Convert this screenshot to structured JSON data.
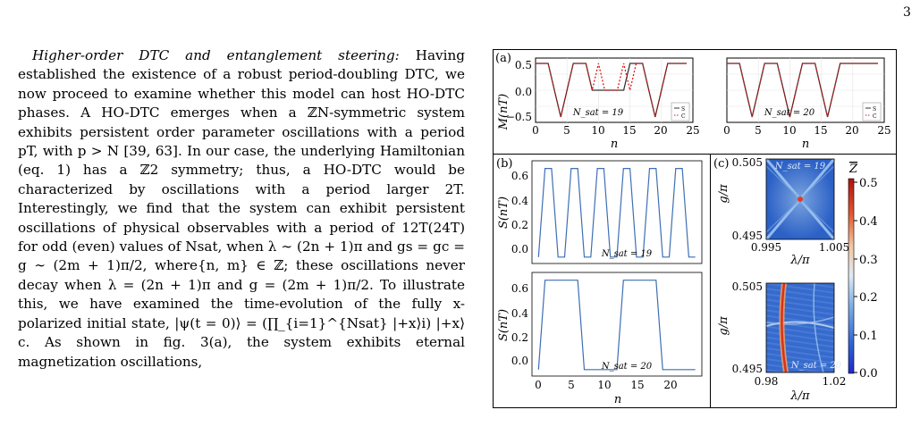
{
  "page_number": "3",
  "text": {
    "heading": "Higher-order DTC and entanglement steering:",
    "body": "Having established the existence of a robust period-doubling DTC, we now proceed to examine whether this model can host HO-DTC phases. A HO-DTC emerges when a ℤN-symmetric system exhibits persistent order parameter oscillations with a period pT, with p > N [39, 63]. In our case, the underlying Hamiltonian (eq. 1) has a ℤ2 symmetry; thus, a HO-DTC would be characterized by oscillations with a period larger 2T. Interestingly, we find that the system can exhibit persistent oscillations of physical observables with a period of 12T(24T) for odd (even) values of Nsat, when λ ∼ (2n + 1)π and gs = gc = g ∼ (2m + 1)π/2, where{n, m} ∈ ℤ; these oscillations never decay when λ = (2n + 1)π and g = (2m + 1)π/2. To illustrate this, we have examined the time-evolution of the fully x-polarized initial state, |ψ(t = 0)⟩ = (∏_{i=1}^{Nsat} |+x⟩i) |+x⟩c. As shown in fig. 3(a), the system exhibits eternal magnetization oscillations,"
  },
  "figure": {
    "panel_a": {
      "label": "(a)",
      "ylabel": "M(nT)",
      "xlabel": "n",
      "yticks": [
        "0.5",
        "0.0",
        "−0.5"
      ],
      "xticks": [
        "0",
        "5",
        "10",
        "15",
        "20",
        "25"
      ],
      "legend": [
        "S",
        "C"
      ],
      "annotation_left": "N_sat = 19",
      "annotation_right": "N_sat = 20"
    },
    "panel_b": {
      "label": "(b)",
      "ylabel": "S(nT)",
      "xlabel": "n",
      "yticks": [
        "0.6",
        "0.4",
        "0.2",
        "0.0"
      ],
      "xticks": [
        "0",
        "5",
        "10",
        "15",
        "20"
      ],
      "annotation_top": "N_sat = 19",
      "annotation_bottom": "N_sat = 20"
    },
    "panel_c": {
      "label": "(c)",
      "ylabel": "g/π",
      "xlabel": "λ/π",
      "top_yticks": [
        "0.505",
        "0.495"
      ],
      "top_xticks": [
        "0.995",
        "1.005"
      ],
      "bottom_yticks": [
        "0.505",
        "0.495"
      ],
      "bottom_xticks": [
        "0.98",
        "1.02"
      ],
      "colorbar_label": "Z",
      "colorbar_ticks": [
        "0.5",
        "0.4",
        "0.3",
        "0.2",
        "0.1",
        "0.0"
      ],
      "annotation_top": "N_sat = 19",
      "annotation_bottom": "N_sat = 20"
    }
  },
  "chart_data": [
    {
      "type": "line",
      "ylabel": "M(nT)",
      "xlabel": "n",
      "xlim": [
        0,
        25
      ],
      "ylim": [
        -0.6,
        0.6
      ],
      "series": [
        {
          "name": "S",
          "x": [
            0,
            1,
            2,
            3,
            4,
            5,
            6,
            7,
            8,
            9,
            10,
            11,
            12,
            13,
            14,
            15,
            16,
            17,
            18,
            19,
            20,
            21,
            22,
            23,
            24
          ],
          "values": [
            0.5,
            0.5,
            0.5,
            0,
            -0.5,
            0,
            0.5,
            0.5,
            0.5,
            0,
            0,
            0,
            0,
            0,
            0,
            0.5,
            0.5,
            0.5,
            0,
            -0.5,
            0,
            0.5,
            0.5,
            0.5,
            0.5
          ]
        },
        {
          "name": "C",
          "x": [
            0,
            1,
            2,
            3,
            4,
            5,
            6,
            7,
            8,
            9,
            10,
            11,
            12,
            13,
            14,
            15,
            16,
            17,
            18,
            19,
            20,
            21,
            22,
            23,
            24
          ],
          "values": [
            0.5,
            0.5,
            0.5,
            0,
            -0.5,
            0,
            0.5,
            0.5,
            0.5,
            0,
            0.5,
            0,
            0,
            0,
            0.5,
            0,
            0.5,
            0.5,
            0,
            -0.5,
            0,
            0.5,
            0.5,
            0.5,
            0.5
          ]
        }
      ]
    },
    {
      "type": "line",
      "ylabel": "M(nT)",
      "xlabel": "n",
      "xlim": [
        0,
        25
      ],
      "ylim": [
        -0.6,
        0.6
      ],
      "series": [
        {
          "name": "S",
          "x": [
            0,
            1,
            2,
            3,
            4,
            5,
            6,
            7,
            8,
            9,
            10,
            11,
            12,
            13,
            14,
            15,
            16,
            17,
            18,
            19,
            20,
            21,
            22,
            23,
            24
          ],
          "values": [
            0.5,
            0.5,
            0.5,
            0,
            -0.5,
            0,
            0.5,
            0.5,
            0.5,
            0,
            -0.5,
            0,
            0.5,
            0.5,
            0.5,
            0,
            -0.5,
            0,
            0.5,
            0.5,
            0.5,
            0.5,
            0.5,
            0.5,
            0.5
          ]
        },
        {
          "name": "C",
          "x": [
            0,
            1,
            2,
            3,
            4,
            5,
            6,
            7,
            8,
            9,
            10,
            11,
            12,
            13,
            14,
            15,
            16,
            17,
            18,
            19,
            20,
            21,
            22,
            23,
            24
          ],
          "values": [
            0.5,
            0.5,
            0.5,
            0,
            -0.5,
            0,
            0.5,
            0.5,
            0.5,
            0,
            -0.5,
            0,
            0.5,
            0.5,
            0.5,
            0,
            -0.5,
            0,
            0.5,
            0.5,
            0.5,
            0.5,
            0.5,
            0.5,
            0.5
          ]
        }
      ]
    },
    {
      "type": "line",
      "ylabel": "S(nT)",
      "xlabel": "n",
      "xlim": [
        -1,
        25
      ],
      "ylim": [
        -0.05,
        0.75
      ],
      "series": [
        {
          "x": [
            0,
            1,
            2,
            3,
            4,
            5,
            6,
            7,
            8,
            9,
            10,
            11,
            12,
            13,
            14,
            15,
            16,
            17,
            18,
            19,
            20,
            21,
            22,
            23,
            24
          ],
          "values": [
            0,
            0.69,
            0.69,
            0,
            0,
            0.69,
            0.69,
            0,
            0,
            0.69,
            0.69,
            0,
            0,
            0.69,
            0.69,
            0,
            0,
            0.69,
            0.69,
            0,
            0,
            0.69,
            0.69,
            0,
            0
          ]
        }
      ]
    },
    {
      "type": "line",
      "ylabel": "S(nT)",
      "xlabel": "n",
      "xlim": [
        -1,
        25
      ],
      "ylim": [
        -0.05,
        0.75
      ],
      "series": [
        {
          "x": [
            0,
            1,
            2,
            3,
            4,
            5,
            6,
            7,
            8,
            9,
            10,
            11,
            12,
            13,
            14,
            15,
            16,
            17,
            18,
            19,
            20,
            21,
            22,
            23,
            24
          ],
          "values": [
            0,
            0.69,
            0.69,
            0.69,
            0.69,
            0.69,
            0.69,
            0,
            0,
            0,
            0,
            0,
            0,
            0.69,
            0.69,
            0.69,
            0.69,
            0.69,
            0.69,
            0,
            0,
            0,
            0,
            0,
            0
          ]
        }
      ]
    }
  ]
}
